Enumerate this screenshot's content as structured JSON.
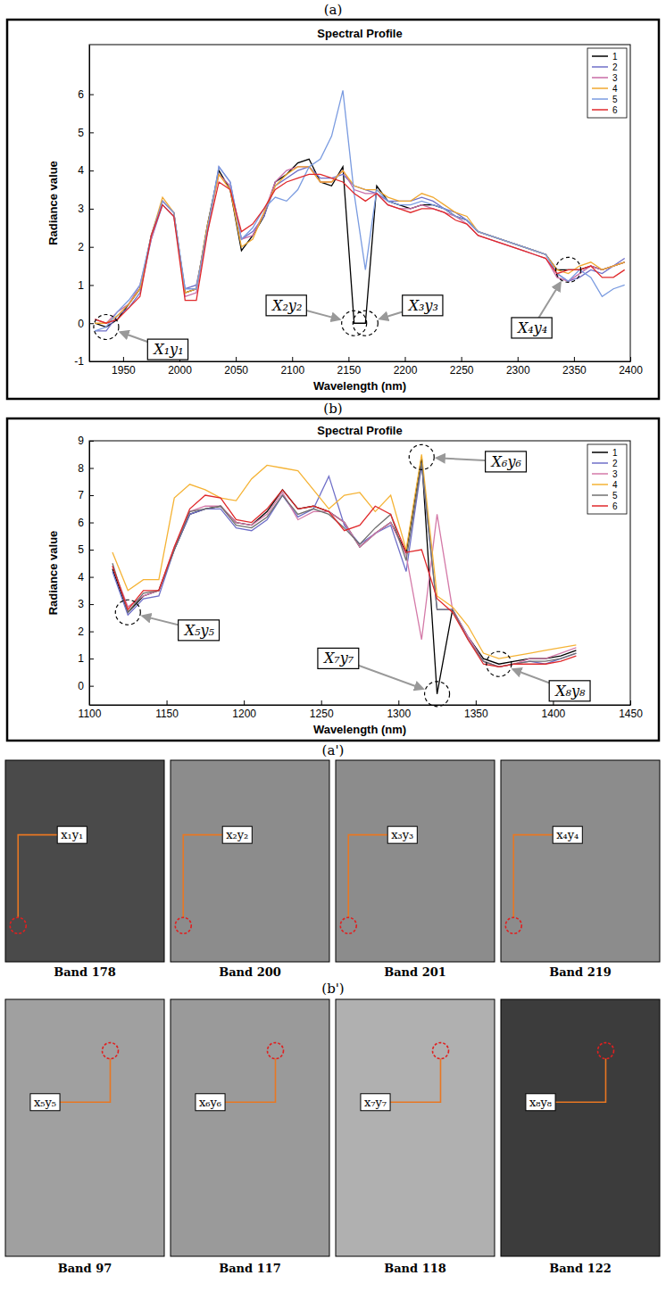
{
  "chart_data": [
    {
      "type": "line",
      "panel": "(a)",
      "title": "Spectral Profile",
      "x_label": "Wavelength (nm)",
      "y_label": "Radiance value",
      "x": [
        1925,
        1935,
        1945,
        1955,
        1965,
        1975,
        1985,
        1995,
        2005,
        2015,
        2025,
        2035,
        2045,
        2055,
        2065,
        2075,
        2085,
        2095,
        2105,
        2115,
        2125,
        2135,
        2145,
        2155,
        2165,
        2175,
        2185,
        2195,
        2205,
        2215,
        2225,
        2235,
        2245,
        2255,
        2265,
        2275,
        2285,
        2295,
        2305,
        2315,
        2325,
        2335,
        2345,
        2355,
        2365,
        2375,
        2385,
        2395
      ],
      "series": [
        {
          "name": "1",
          "color": "#000000",
          "values": [
            0.0,
            -0.1,
            0.1,
            0.5,
            0.9,
            2.3,
            3.2,
            2.9,
            0.8,
            0.9,
            2.6,
            4.0,
            3.5,
            1.9,
            2.3,
            2.8,
            3.7,
            3.9,
            4.2,
            4.3,
            3.7,
            3.6,
            4.1,
            0,
            0,
            3.6,
            3.2,
            3.1,
            3.0,
            3.1,
            3.1,
            3.0,
            2.8,
            2.7,
            2.4,
            2.3,
            2.2,
            2.1,
            2.0,
            1.9,
            1.8,
            1.4,
            1.4,
            1.4,
            1.5,
            1.4,
            1.5,
            1.6
          ]
        },
        {
          "name": "2",
          "color": "#6f6fc8",
          "values": [
            -0.2,
            -0.2,
            0.2,
            0.4,
            0.8,
            2.2,
            3.1,
            2.8,
            0.9,
            1.0,
            2.4,
            4.1,
            3.7,
            2.2,
            2.4,
            2.8,
            3.6,
            3.8,
            4.0,
            4.1,
            3.8,
            3.8,
            3.9,
            3.6,
            3.5,
            3.4,
            3.2,
            3.2,
            3.2,
            3.3,
            3.2,
            3.0,
            2.9,
            2.7,
            2.4,
            2.3,
            2.2,
            2.1,
            2.0,
            1.9,
            1.8,
            1.3,
            1.1,
            1.2,
            1.4,
            1.3,
            1.5,
            1.7
          ]
        },
        {
          "name": "3",
          "color": "#c86ba6",
          "values": [
            0.1,
            0.0,
            0.3,
            0.5,
            1.0,
            2.2,
            3.2,
            2.9,
            0.7,
            0.8,
            2.5,
            3.9,
            3.6,
            2.2,
            2.3,
            2.9,
            3.7,
            4.0,
            4.1,
            4.1,
            3.7,
            3.7,
            4.0,
            3.5,
            3.4,
            3.4,
            3.1,
            3.0,
            3.0,
            3.1,
            3.0,
            2.9,
            2.8,
            2.6,
            2.3,
            2.2,
            2.1,
            2.0,
            1.9,
            1.8,
            1.7,
            1.2,
            1.1,
            1.3,
            1.5,
            1.4,
            1.5,
            1.6
          ]
        },
        {
          "name": "4",
          "color": "#f0a830",
          "values": [
            0.0,
            0.0,
            0.2,
            0.5,
            0.9,
            2.3,
            3.3,
            2.9,
            0.8,
            0.9,
            2.6,
            3.9,
            3.5,
            2.0,
            2.2,
            2.9,
            3.6,
            3.9,
            4.1,
            4.1,
            3.7,
            3.7,
            4.0,
            3.6,
            3.5,
            3.5,
            3.3,
            3.2,
            3.2,
            3.4,
            3.3,
            3.1,
            2.9,
            2.8,
            2.4,
            2.3,
            2.2,
            2.1,
            2.0,
            1.9,
            1.8,
            1.4,
            1.3,
            1.5,
            1.6,
            1.4,
            1.5,
            1.6
          ]
        },
        {
          "name": "5",
          "color": "#7a9be0",
          "values": [
            -0.2,
            -0.1,
            0.3,
            0.6,
            1.0,
            2.3,
            3.2,
            2.9,
            0.9,
            0.9,
            2.5,
            4.1,
            3.7,
            2.2,
            2.5,
            3.0,
            3.3,
            3.2,
            3.5,
            4.1,
            4.3,
            4.9,
            6.1,
            3.4,
            1.4,
            3.5,
            3.2,
            3.1,
            3.1,
            3.2,
            3.1,
            3.0,
            2.8,
            2.7,
            2.4,
            2.3,
            2.2,
            2.1,
            2.0,
            1.9,
            1.8,
            1.3,
            1.1,
            1.4,
            1.2,
            0.7,
            0.9,
            1.0
          ]
        },
        {
          "name": "6",
          "color": "#e0292b",
          "values": [
            0.1,
            0.0,
            0.1,
            0.4,
            0.7,
            2.3,
            3.1,
            2.8,
            0.6,
            0.6,
            2.4,
            3.7,
            3.5,
            2.4,
            2.6,
            3.0,
            3.5,
            3.7,
            3.8,
            3.9,
            3.9,
            3.8,
            3.7,
            3.4,
            3.2,
            3.4,
            3.1,
            3.0,
            2.9,
            3.0,
            3.0,
            2.9,
            2.7,
            2.6,
            2.3,
            2.2,
            2.1,
            2.0,
            1.9,
            1.8,
            1.7,
            1.3,
            1.4,
            1.4,
            1.5,
            1.2,
            1.2,
            1.4
          ]
        }
      ],
      "xlim": [
        1920,
        2400
      ],
      "ylim": [
        -1,
        7.3
      ],
      "xticks": [
        1950,
        2000,
        2050,
        2100,
        2150,
        2200,
        2250,
        2300,
        2350,
        2400
      ],
      "yticks": [
        -1,
        0,
        1,
        2,
        3,
        4,
        5,
        6
      ],
      "legend": "upper right",
      "annotations": [
        {
          "text": "X₁y₁",
          "x": 1935,
          "y": -0.1
        },
        {
          "text": "X₂y₂",
          "x": 2155,
          "y": 0
        },
        {
          "text": "X₃y₃",
          "x": 2165,
          "y": 0
        },
        {
          "text": "X₄y₄",
          "x": 2345,
          "y": 1.4
        }
      ]
    },
    {
      "type": "line",
      "panel": "(b)",
      "title": "Spectral Profile",
      "x_label": "Wavelength (nm)",
      "y_label": "Radiance value",
      "x": [
        1115,
        1125,
        1135,
        1145,
        1155,
        1165,
        1175,
        1185,
        1195,
        1205,
        1215,
        1225,
        1235,
        1245,
        1255,
        1265,
        1275,
        1285,
        1295,
        1305,
        1315,
        1325,
        1335,
        1345,
        1355,
        1365,
        1375,
        1385,
        1395,
        1405,
        1415
      ],
      "series": [
        {
          "name": "1",
          "color": "#000000",
          "values": [
            4.3,
            2.7,
            3.3,
            3.5,
            5.0,
            6.3,
            6.5,
            6.6,
            6.0,
            5.9,
            6.4,
            7.2,
            6.5,
            6.6,
            6.4,
            6.0,
            5.1,
            5.6,
            6.0,
            4.9,
            8.4,
            -0.3,
            2.8,
            1.8,
            1.0,
            0.8,
            0.9,
            1.0,
            1.0,
            1.1,
            1.3
          ]
        },
        {
          "name": "2",
          "color": "#6f6fc8",
          "values": [
            4.2,
            2.6,
            3.2,
            3.3,
            5.0,
            6.3,
            6.5,
            6.5,
            5.8,
            5.7,
            6.1,
            7.0,
            6.2,
            6.5,
            7.7,
            5.9,
            5.2,
            5.6,
            5.9,
            4.2,
            8.1,
            2.8,
            2.8,
            1.8,
            0.9,
            0.7,
            0.8,
            0.9,
            0.8,
            1.0,
            1.2
          ]
        },
        {
          "name": "3",
          "color": "#d47aa8",
          "values": [
            4.4,
            2.9,
            3.3,
            3.5,
            5.1,
            6.4,
            6.6,
            6.6,
            6.0,
            5.9,
            6.3,
            7.1,
            6.1,
            6.4,
            6.4,
            6.0,
            5.1,
            5.6,
            6.0,
            4.8,
            1.7,
            6.3,
            2.8,
            1.8,
            0.9,
            0.7,
            0.8,
            1.0,
            1.0,
            1.2,
            1.4
          ]
        },
        {
          "name": "4",
          "color": "#f5b335",
          "values": [
            4.9,
            3.5,
            3.9,
            3.9,
            6.9,
            7.4,
            7.2,
            6.9,
            6.8,
            7.6,
            8.1,
            8.0,
            7.9,
            7.2,
            6.5,
            7.0,
            7.1,
            6.4,
            7.0,
            5.0,
            8.5,
            3.3,
            2.9,
            2.2,
            1.2,
            1.0,
            1.1,
            1.2,
            1.3,
            1.4,
            1.5
          ]
        },
        {
          "name": "5",
          "color": "#707070",
          "values": [
            4.5,
            2.7,
            3.4,
            3.5,
            5.0,
            6.4,
            6.5,
            6.6,
            5.9,
            5.8,
            6.2,
            7.0,
            6.3,
            6.5,
            6.3,
            5.8,
            5.2,
            5.8,
            6.3,
            4.6,
            8.2,
            2.8,
            2.8,
            1.7,
            0.9,
            0.7,
            0.8,
            0.9,
            0.9,
            1.0,
            1.2
          ]
        },
        {
          "name": "6",
          "color": "#e0292b",
          "values": [
            4.4,
            2.8,
            3.5,
            3.5,
            5.1,
            6.5,
            7.0,
            6.9,
            6.1,
            6.0,
            6.5,
            7.2,
            6.5,
            6.6,
            6.4,
            5.7,
            5.9,
            6.6,
            6.3,
            4.9,
            5.0,
            3.2,
            2.7,
            1.7,
            0.8,
            0.7,
            0.8,
            0.8,
            0.8,
            0.9,
            1.1
          ]
        }
      ],
      "xlim": [
        1100,
        1450
      ],
      "ylim": [
        -0.7,
        9
      ],
      "xticks": [
        1100,
        1150,
        1200,
        1250,
        1300,
        1350,
        1400,
        1450
      ],
      "yticks": [
        0,
        1,
        2,
        3,
        4,
        5,
        6,
        7,
        8,
        9
      ],
      "legend": "upper right",
      "annotations": [
        {
          "text": "X₅y₅",
          "x": 1125,
          "y": 2.7
        },
        {
          "text": "X₆y₆",
          "x": 1315,
          "y": 8.4
        },
        {
          "text": "X₇y₇",
          "x": 1325,
          "y": -0.3
        },
        {
          "text": "X₈y₈",
          "x": 1365,
          "y": 0.8
        }
      ]
    }
  ],
  "image_panels": [
    {
      "panel": "(a')",
      "images": [
        {
          "caption": "Band 178",
          "label": "x₁y₁"
        },
        {
          "caption": "Band 200",
          "label": "x₂y₂"
        },
        {
          "caption": "Band 201",
          "label": "x₃y₃"
        },
        {
          "caption": "Band 219",
          "label": "x₄y₄"
        }
      ]
    },
    {
      "panel": "(b')",
      "images": [
        {
          "caption": "Band 97",
          "label": "x₅y₅"
        },
        {
          "caption": "Band 117",
          "label": "x₆y₆"
        },
        {
          "caption": "Band 118",
          "label": "x₇y₇"
        },
        {
          "caption": "Band 122",
          "label": "x₈y₈"
        }
      ]
    }
  ]
}
